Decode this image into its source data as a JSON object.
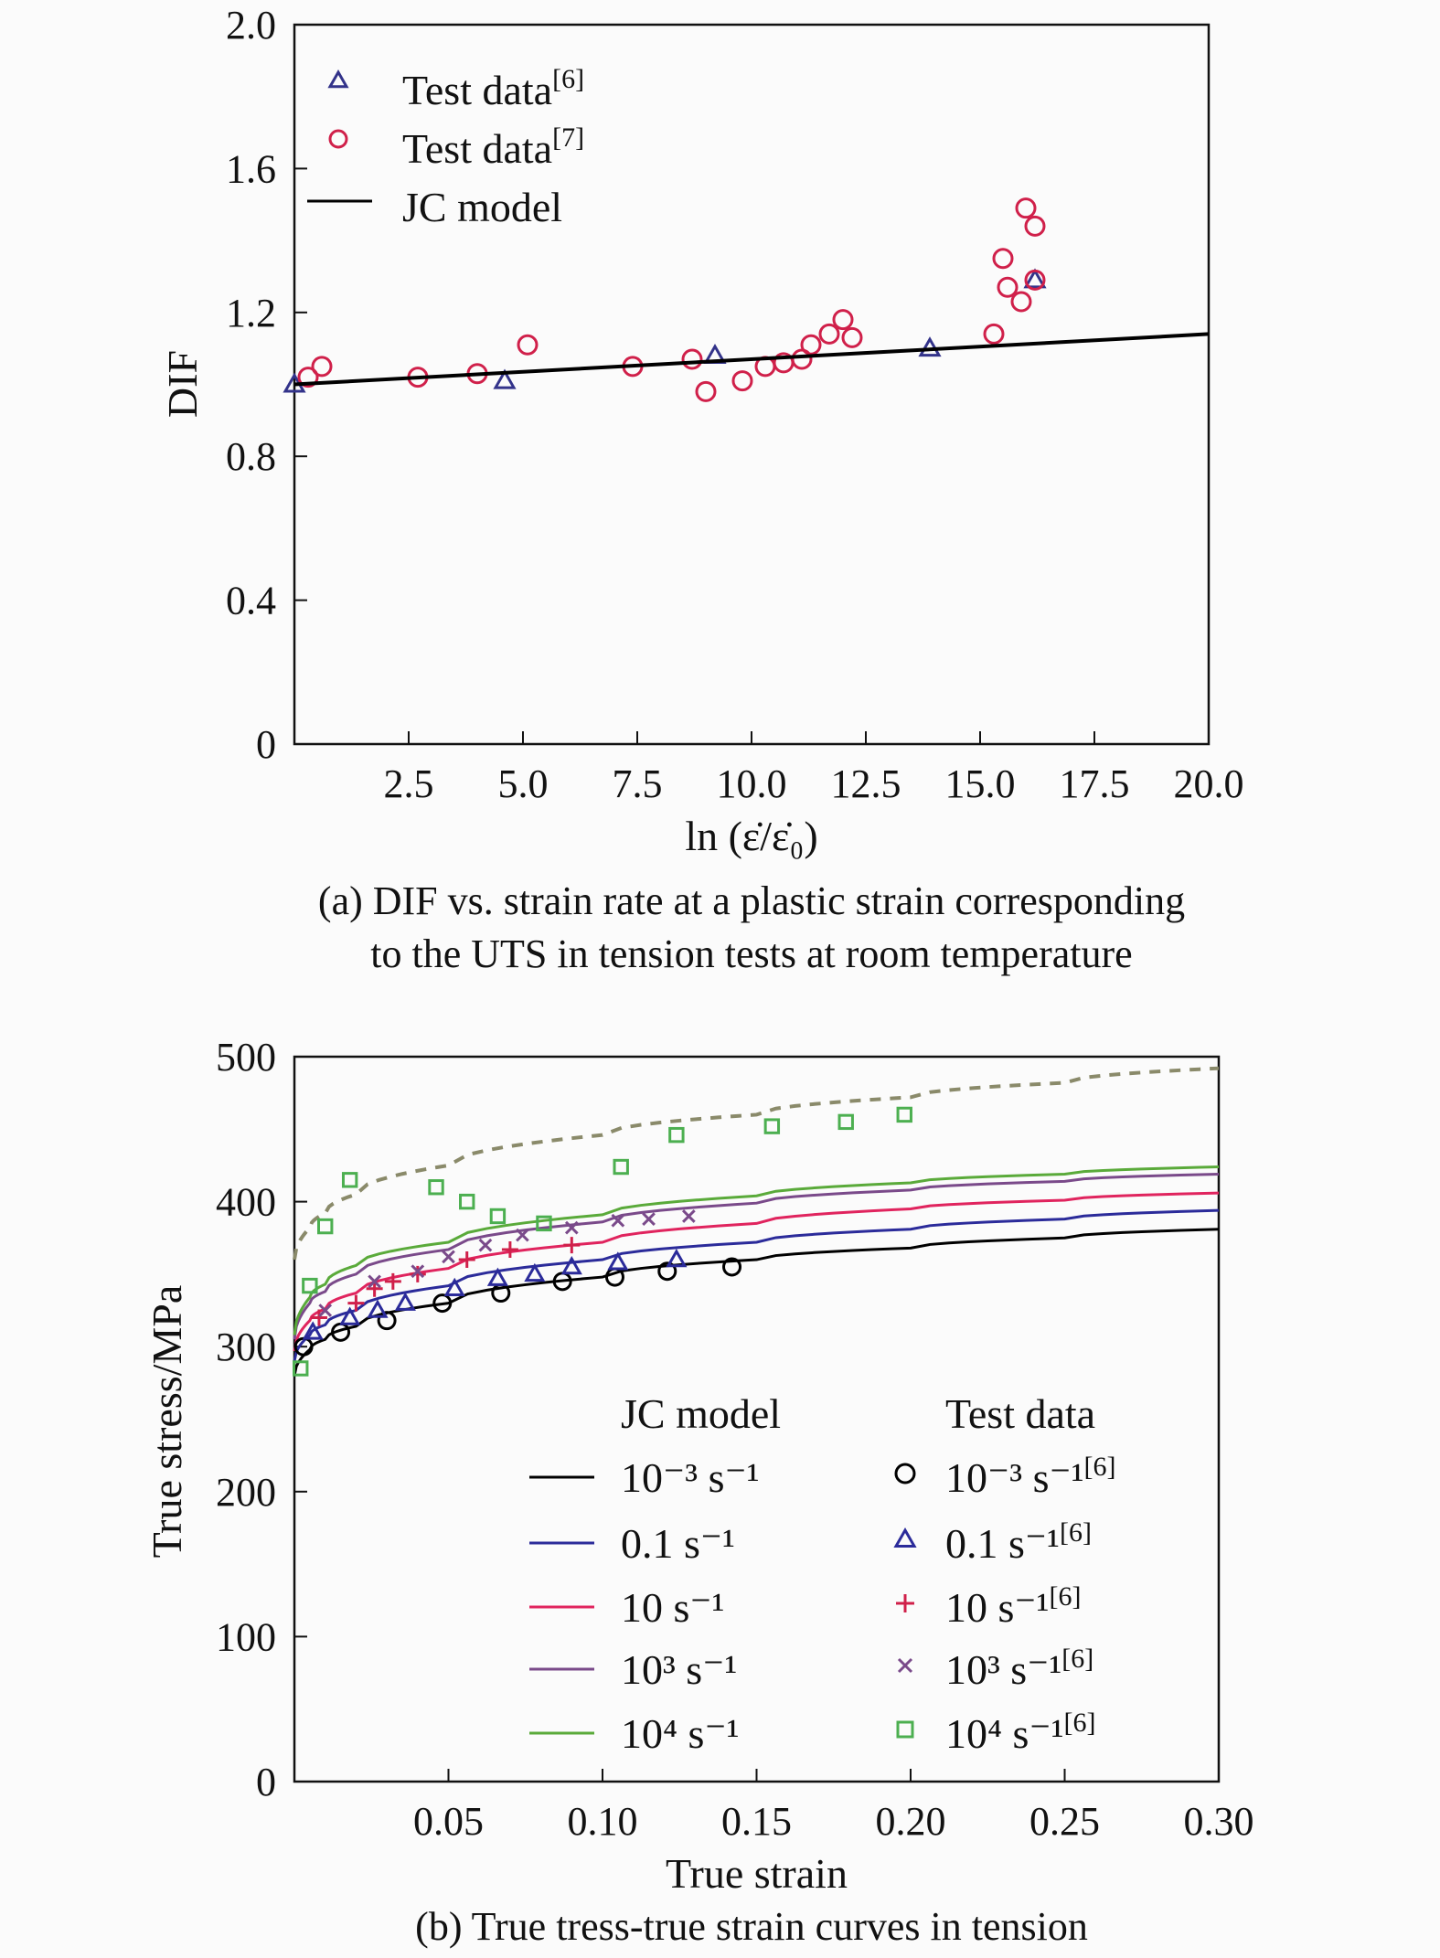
{
  "chart_data": [
    {
      "type": "scatter",
      "caption": [
        "(a) DIF vs. strain rate at a plastic strain corresponding",
        "to the UTS in tension tests at room temperature"
      ],
      "xlabel": "ln (ε̇/ε̇₀)",
      "ylabel": "DIF",
      "xlim": [
        0,
        20
      ],
      "ylim": [
        0,
        2.0
      ],
      "xticks": [
        "2.5",
        "5.0",
        "7.5",
        "10.0",
        "12.5",
        "15.0",
        "17.5",
        "20.0"
      ],
      "yticks": [
        "0",
        "0.4",
        "0.8",
        "1.2",
        "1.6",
        "2.0"
      ],
      "grid": false,
      "legend_placement": "top-left",
      "series": [
        {
          "name": "Test data",
          "sup": "[6]",
          "marker": "triangle",
          "color": "#33338a",
          "x": [
            0,
            4.6,
            9.2,
            13.9,
            16.2
          ],
          "y": [
            1.0,
            1.01,
            1.08,
            1.1,
            1.29
          ]
        },
        {
          "name": "Test data",
          "sup": "[7]",
          "marker": "circle",
          "color": "#d0204a",
          "x": [
            0.3,
            0.6,
            2.7,
            4.0,
            5.1,
            7.4,
            8.7,
            9.0,
            9.8,
            10.3,
            10.7,
            11.1,
            11.3,
            11.7,
            12.0,
            12.2,
            15.3,
            15.5,
            15.6,
            15.9,
            16.0,
            16.2,
            16.2
          ],
          "y": [
            1.02,
            1.05,
            1.02,
            1.03,
            1.11,
            1.05,
            1.07,
            0.98,
            1.01,
            1.05,
            1.06,
            1.07,
            1.11,
            1.14,
            1.18,
            1.13,
            1.14,
            1.35,
            1.27,
            1.23,
            1.49,
            1.44,
            1.29
          ]
        },
        {
          "name": "JC model",
          "sup": "",
          "marker": "line",
          "color": "#000000",
          "x": [
            0,
            20
          ],
          "y": [
            1.0,
            1.14
          ]
        }
      ]
    },
    {
      "type": "line",
      "caption": [
        "(b) True tress-true strain curves in tension"
      ],
      "xlabel": "True strain",
      "ylabel": "True stress/MPa",
      "xlim": [
        0,
        0.3
      ],
      "ylim": [
        0,
        500
      ],
      "xticks": [
        "0.05",
        "0.10",
        "0.15",
        "0.20",
        "0.25",
        "0.30"
      ],
      "yticks": [
        "0",
        "100",
        "200",
        "300",
        "400",
        "500"
      ],
      "grid": false,
      "legend_placement": "bottom-right",
      "legend_headers": [
        "JC model",
        "Test data"
      ],
      "model_x": [
        0,
        0.005,
        0.01,
        0.02,
        0.05,
        0.1,
        0.15,
        0.2,
        0.25,
        0.3
      ],
      "models": [
        {
          "name": "10⁻³ s⁻¹",
          "color": "#000000",
          "y": [
            280,
            298,
            305,
            314,
            330,
            348,
            360,
            368,
            375,
            381
          ]
        },
        {
          "name": "0.1 s⁻¹",
          "color": "#2b2b9a",
          "y": [
            290,
            308,
            315,
            325,
            342,
            360,
            372,
            381,
            388,
            394
          ]
        },
        {
          "name": "10 s⁻¹",
          "color": "#e0245e",
          "y": [
            297,
            318,
            326,
            337,
            354,
            372,
            385,
            395,
            401,
            406
          ]
        },
        {
          "name": "10³ s⁻¹",
          "color": "#7a4a8a",
          "y": [
            305,
            330,
            338,
            350,
            367,
            386,
            399,
            408,
            414,
            419
          ]
        },
        {
          "name": "10⁴ s⁻¹",
          "color": "#5aaa3a",
          "y": [
            308,
            334,
            343,
            356,
            372,
            391,
            404,
            413,
            419,
            424
          ]
        },
        {
          "name": "",
          "color": "#8a8a6a",
          "dashed": true,
          "y": [
            360,
            382,
            392,
            405,
            425,
            446,
            460,
            472,
            482,
            492
          ]
        }
      ],
      "tests": [
        {
          "name": "10⁻³ s⁻¹",
          "sup": "[6]",
          "marker": "circle",
          "color": "#000000",
          "x": [
            0.003,
            0.015,
            0.03,
            0.048,
            0.067,
            0.087,
            0.104,
            0.121,
            0.142
          ],
          "y": [
            300,
            310,
            318,
            330,
            337,
            345,
            348,
            352,
            355
          ]
        },
        {
          "name": "0.1 s⁻¹",
          "sup": "[6]",
          "marker": "triangle",
          "color": "#2b2b9a",
          "x": [
            0.006,
            0.018,
            0.027,
            0.036,
            0.052,
            0.066,
            0.078,
            0.09,
            0.105,
            0.124
          ],
          "y": [
            310,
            320,
            325,
            330,
            340,
            347,
            350,
            355,
            358,
            360
          ]
        },
        {
          "name": "10 s⁻¹",
          "sup": "[6]",
          "marker": "plus",
          "color": "#d0204a",
          "x": [
            0.008,
            0.02,
            0.026,
            0.032,
            0.04,
            0.056,
            0.07,
            0.09
          ],
          "y": [
            320,
            330,
            340,
            345,
            350,
            360,
            367,
            370
          ]
        },
        {
          "name": "10³ s⁻¹",
          "sup": "[6]",
          "marker": "cross",
          "color": "#7a4a8a",
          "x": [
            0.01,
            0.026,
            0.04,
            0.05,
            0.062,
            0.074,
            0.09,
            0.105,
            0.115,
            0.128
          ],
          "y": [
            325,
            345,
            352,
            362,
            370,
            377,
            382,
            387,
            388,
            390
          ]
        },
        {
          "name": "10⁴ s⁻¹",
          "sup": "[6]",
          "marker": "square",
          "color": "#4caf50",
          "x": [
            0.002,
            0.005,
            0.01,
            0.018,
            0.046,
            0.056,
            0.066,
            0.081,
            0.106,
            0.124,
            0.155,
            0.179,
            0.198
          ],
          "y": [
            285,
            342,
            383,
            415,
            410,
            400,
            390,
            385,
            424,
            446,
            452,
            455,
            460
          ]
        }
      ]
    }
  ]
}
